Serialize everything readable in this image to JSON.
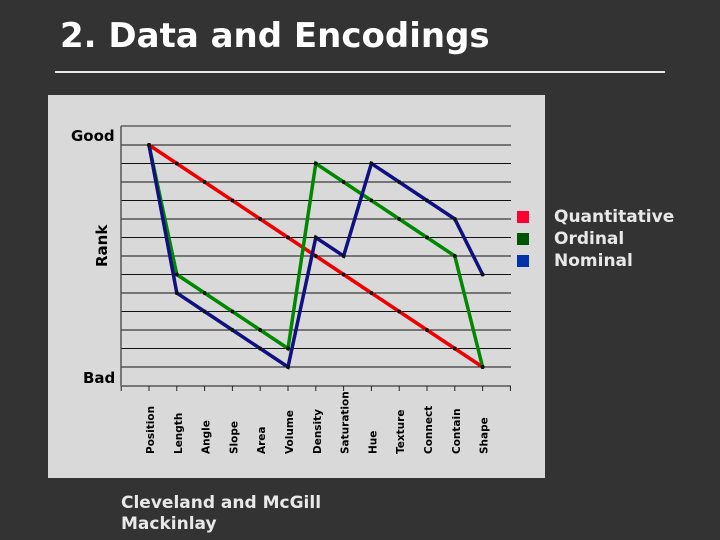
{
  "slide": {
    "title": "2. Data and Encodings",
    "credits": [
      "Cleveland and McGill",
      "Mackinlay"
    ]
  },
  "chart_data": {
    "type": "line",
    "title": "",
    "xlabel": "",
    "ylabel": "Rank",
    "y_top_label": "Good",
    "y_bottom_label": "Bad",
    "ylim": [
      1,
      13
    ],
    "y_inverted": true,
    "grid": true,
    "legend_placement": "right",
    "categories": [
      "Position",
      "Length",
      "Angle",
      "Slope",
      "Area",
      "Volume",
      "Density",
      "Saturation",
      "Hue",
      "Texture",
      "Connect",
      "Contain",
      "Shape"
    ],
    "series": [
      {
        "name": "Quantitative",
        "color": "#ee0000",
        "values": [
          1,
          2,
          3,
          4,
          5,
          6,
          7,
          8,
          9,
          10,
          11,
          12,
          13
        ]
      },
      {
        "name": "Ordinal",
        "color": "#008800",
        "values": [
          1,
          8,
          9,
          10,
          11,
          12,
          2,
          3,
          4,
          5,
          6,
          7,
          13
        ]
      },
      {
        "name": "Nominal",
        "color": "#101080",
        "values": [
          1,
          9,
          10,
          11,
          12,
          13,
          6,
          7,
          2,
          3,
          4,
          5,
          8
        ]
      }
    ],
    "legend_colors": [
      "#ff0033",
      "#005500",
      "#0033aa"
    ]
  }
}
